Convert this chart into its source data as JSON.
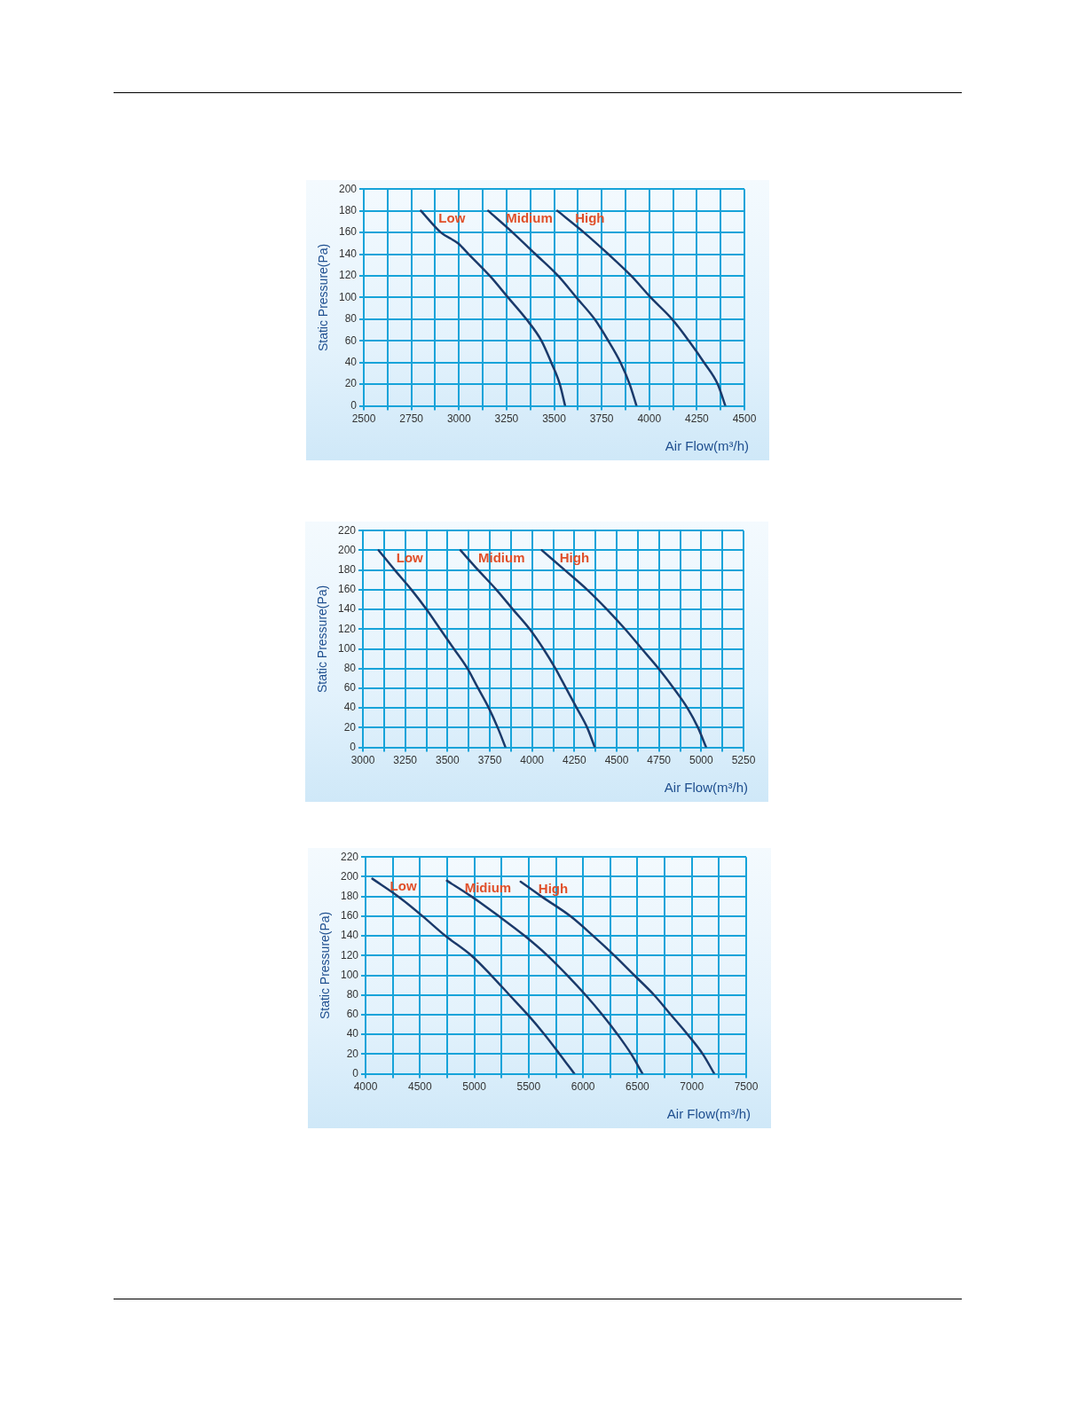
{
  "chart_data": [
    {
      "type": "line",
      "xlabel": "Air Flow(m³/h)",
      "ylabel": "Static Pressure(Pa)",
      "xlim": [
        2500,
        4500
      ],
      "ylim": [
        0,
        200
      ],
      "xticks": [
        2500,
        {
          "value": 2625,
          "label": null
        },
        2750,
        {
          "value": 2875,
          "label": null
        },
        3000,
        {
          "value": 3125,
          "label": null
        },
        3250,
        {
          "value": 3375,
          "label": null
        },
        3500,
        {
          "value": 3625,
          "label": null
        },
        3750,
        {
          "value": 3875,
          "label": null
        },
        4000,
        {
          "value": 4125,
          "label": null
        },
        4250,
        {
          "value": 4375,
          "label": null
        },
        4500
      ],
      "yticks": [
        0,
        20,
        40,
        60,
        80,
        100,
        120,
        140,
        160,
        180,
        200
      ],
      "grid": true,
      "legend": false,
      "marker": "none",
      "line_style": "solid",
      "series": [
        {
          "name": "Low",
          "color": "#1b3a6b",
          "x": [
            2800,
            2905,
            2995,
            3051,
            3162,
            3258,
            3354,
            3434,
            3485,
            3530,
            3558
          ],
          "values": [
            180,
            160,
            150,
            140,
            120,
            100,
            80,
            60,
            40,
            20,
            0
          ]
        },
        {
          "name": "Midium",
          "color": "#1b3a6b",
          "x": [
            3154,
            3282,
            3402,
            3521,
            3617,
            3713,
            3785,
            3849,
            3897,
            3933
          ],
          "values": [
            180,
            160,
            140,
            120,
            100,
            80,
            60,
            40,
            20,
            0
          ]
        },
        {
          "name": "High",
          "color": "#1b3a6b",
          "x": [
            3517,
            3657,
            3785,
            3905,
            4008,
            4120,
            4208,
            4288,
            4360,
            4400
          ],
          "values": [
            180,
            160,
            140,
            120,
            100,
            80,
            60,
            40,
            20,
            0
          ]
        }
      ]
    },
    {
      "type": "line",
      "xlabel": "Air Flow(m³/h)",
      "ylabel": "Static Pressure(Pa)",
      "xlim": [
        3000,
        5250
      ],
      "ylim": [
        0,
        220
      ],
      "xticks": [
        3000,
        {
          "value": 3125,
          "label": null
        },
        3250,
        {
          "value": 3375,
          "label": null
        },
        3500,
        {
          "value": 3625,
          "label": null
        },
        3750,
        {
          "value": 3875,
          "label": null
        },
        4000,
        {
          "value": 4125,
          "label": null
        },
        4250,
        {
          "value": 4375,
          "label": null
        },
        4500,
        {
          "value": 4625,
          "label": null
        },
        4750,
        {
          "value": 4875,
          "label": null
        },
        5000,
        {
          "value": 5125,
          "label": null
        },
        5250
      ],
      "yticks": [
        0,
        20,
        40,
        60,
        80,
        100,
        120,
        140,
        160,
        180,
        200,
        220
      ],
      "grid": true,
      "legend": false,
      "marker": "none",
      "line_style": "solid",
      "series": [
        {
          "name": "Low",
          "color": "#1b3a6b",
          "x": [
            3093,
            3188,
            3287,
            3376,
            3457,
            3538,
            3618,
            3681,
            3744,
            3797,
            3843
          ],
          "values": [
            200,
            180,
            160,
            140,
            120,
            100,
            80,
            60,
            40,
            20,
            0
          ]
        },
        {
          "name": "Midium",
          "color": "#1b3a6b",
          "x": [
            3577,
            3681,
            3789,
            3887,
            3986,
            4067,
            4138,
            4201,
            4264,
            4326,
            4371
          ],
          "values": [
            200,
            180,
            160,
            140,
            120,
            100,
            80,
            60,
            40,
            20,
            0
          ]
        },
        {
          "name": "High",
          "color": "#1b3a6b",
          "x": [
            4058,
            4193,
            4326,
            4443,
            4550,
            4649,
            4748,
            4837,
            4918,
            4981,
            5029
          ],
          "values": [
            200,
            180,
            160,
            140,
            120,
            100,
            80,
            60,
            40,
            20,
            0
          ]
        }
      ]
    },
    {
      "type": "line",
      "xlabel": "Air Flow(m³/h)",
      "ylabel": "Static Pressure(Pa)",
      "xlim": [
        4000,
        7500
      ],
      "ylim": [
        0,
        220
      ],
      "xticks": [
        4000,
        {
          "value": 4250,
          "label": null
        },
        4500,
        {
          "value": 4750,
          "label": null
        },
        5000,
        {
          "value": 5250,
          "label": null
        },
        5500,
        {
          "value": 5750,
          "label": null
        },
        6000,
        {
          "value": 6250,
          "label": null
        },
        6500,
        {
          "value": 6750,
          "label": null
        },
        7000,
        {
          "value": 7250,
          "label": null
        },
        7500
      ],
      "yticks": [
        0,
        20,
        40,
        60,
        80,
        100,
        120,
        140,
        160,
        180,
        200,
        220
      ],
      "grid": true,
      "legend": false,
      "marker": "none",
      "line_style": "solid",
      "series": [
        {
          "name": "Low",
          "color": "#1b3a6b",
          "x": [
            4062,
            4300,
            4524,
            4734,
            4973,
            5155,
            5323,
            5491,
            5645,
            5785,
            5920
          ],
          "values": [
            198,
            180,
            160,
            140,
            120,
            100,
            80,
            60,
            40,
            20,
            0
          ]
        },
        {
          "name": "Midium",
          "color": "#1b3a6b",
          "x": [
            4748,
            4973,
            5225,
            5463,
            5673,
            5855,
            6023,
            6177,
            6317,
            6443,
            6547
          ],
          "values": [
            196,
            180,
            160,
            140,
            120,
            100,
            80,
            60,
            40,
            20,
            0
          ]
        },
        {
          "name": "High",
          "color": "#1b3a6b",
          "x": [
            5426,
            5617,
            5883,
            6093,
            6289,
            6471,
            6653,
            6807,
            6961,
            7101,
            7207
          ],
          "values": [
            195,
            180,
            160,
            140,
            120,
            100,
            80,
            60,
            40,
            20,
            0
          ]
        }
      ]
    }
  ]
}
